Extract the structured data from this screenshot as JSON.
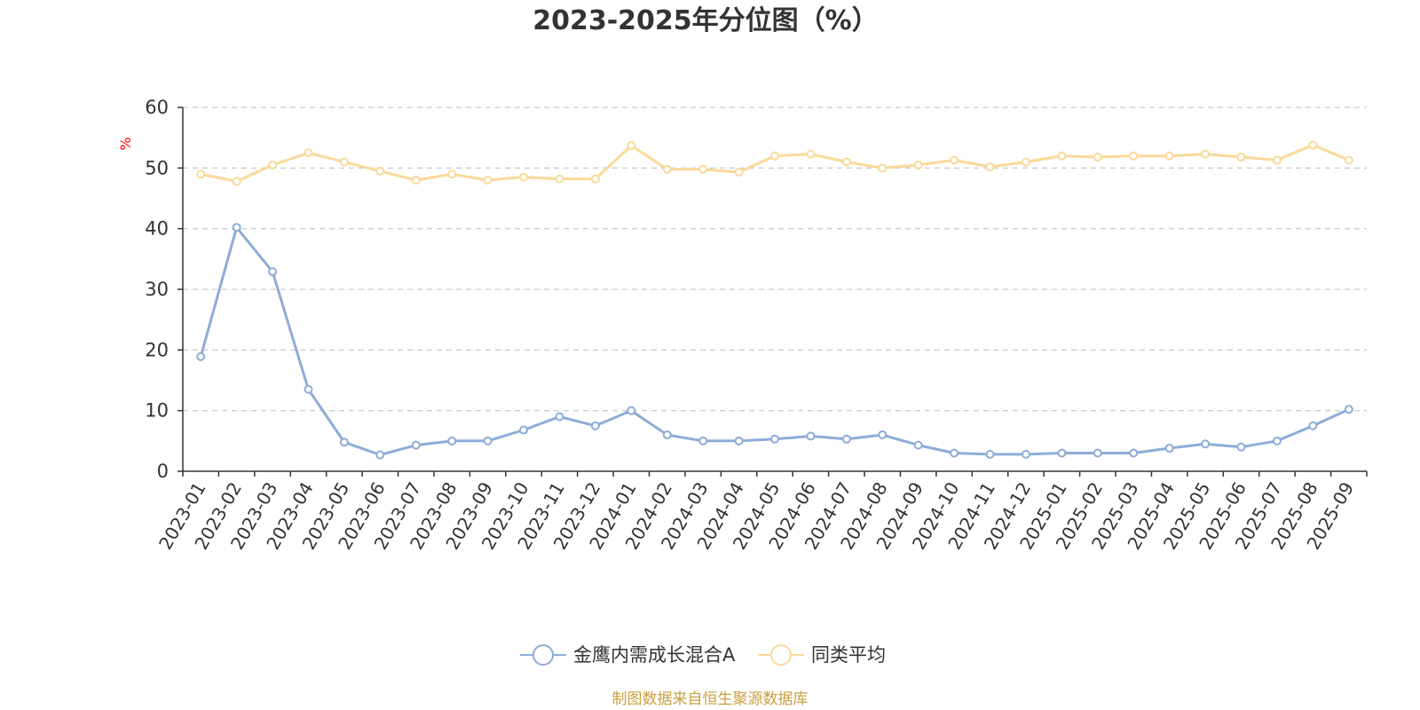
{
  "chart_data": {
    "type": "line",
    "title": "2023-2025年分位图（%）",
    "ylabel": "%",
    "ylim": [
      0,
      60
    ],
    "yticks": [
      0,
      10,
      20,
      30,
      40,
      50,
      60
    ],
    "grid": true,
    "legend_position": "bottom-center",
    "categories": [
      "2023-01",
      "2023-02",
      "2023-03",
      "2023-04",
      "2023-05",
      "2023-06",
      "2023-07",
      "2023-08",
      "2023-09",
      "2023-10",
      "2023-11",
      "2023-12",
      "2024-01",
      "2024-02",
      "2024-03",
      "2024-04",
      "2024-05",
      "2024-06",
      "2024-07",
      "2024-08",
      "2024-09",
      "2024-10",
      "2024-11",
      "2024-12",
      "2025-01",
      "2025-02",
      "2025-03",
      "2025-04",
      "2025-05",
      "2025-06",
      "2025-07",
      "2025-08",
      "2025-09"
    ],
    "series": [
      {
        "name": "金鹰内需成长混合A",
        "color": "#8eacd8",
        "values": [
          18.9,
          40.2,
          32.9,
          13.5,
          4.8,
          2.7,
          4.3,
          5.0,
          5.0,
          6.8,
          9.0,
          7.5,
          10.0,
          6.0,
          5.0,
          5.0,
          5.3,
          5.8,
          5.3,
          6.0,
          4.3,
          3.0,
          2.8,
          2.8,
          3.0,
          3.0,
          3.0,
          3.8,
          4.5,
          4.0,
          5.0,
          7.5,
          10.2
        ]
      },
      {
        "name": "同类平均",
        "color": "#fad999",
        "values": [
          49.0,
          47.8,
          50.5,
          52.5,
          51.0,
          49.5,
          48.0,
          49.0,
          48.0,
          48.5,
          48.2,
          48.2,
          53.7,
          49.8,
          49.8,
          49.3,
          52.0,
          52.3,
          51.0,
          50.0,
          50.5,
          51.3,
          50.2,
          51.0,
          52.0,
          51.8,
          52.0,
          52.0,
          52.3,
          51.8,
          51.3,
          53.8,
          51.3
        ]
      }
    ]
  },
  "source_note": "制图数据来自恒生聚源数据库",
  "colors": {
    "axis": "#333333",
    "grid": "#cccccc",
    "unit": "#ff0000",
    "source": "#c8a040"
  }
}
